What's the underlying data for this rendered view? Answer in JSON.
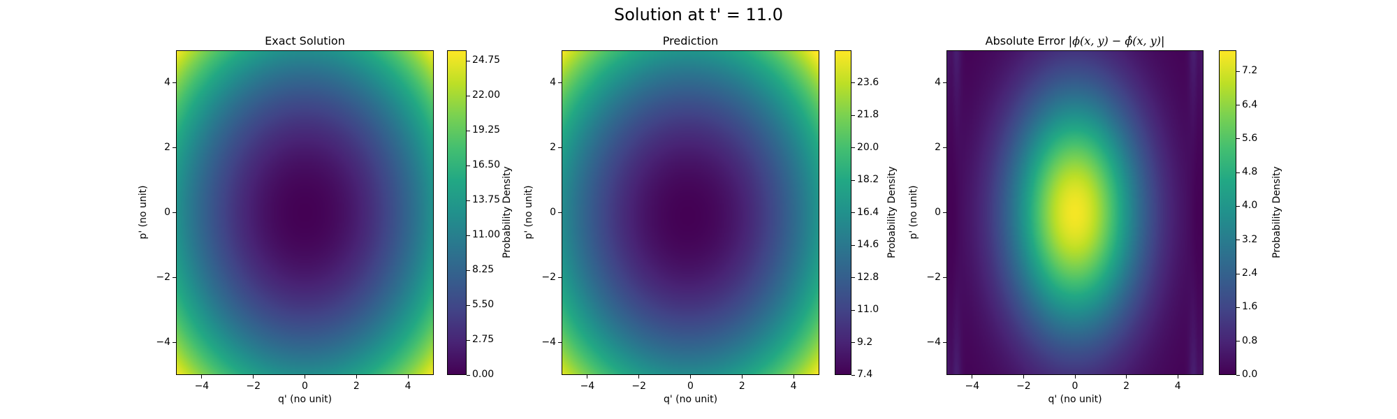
{
  "suptitle": "Solution at t' = 11.0",
  "colormap": "viridis",
  "chart_data": [
    {
      "type": "heatmap",
      "title": "Exact Solution",
      "xlabel": "q' (no unit)",
      "ylabel": "p' (no unit)",
      "xlim": [
        -5,
        5
      ],
      "ylim": [
        -5,
        5
      ],
      "xticks": [
        -4,
        -2,
        0,
        2,
        4
      ],
      "yticks": [
        -4,
        -2,
        0,
        2,
        4
      ],
      "xtick_labels": [
        "−4",
        "−2",
        "0",
        "2",
        "4"
      ],
      "ytick_labels": [
        "−4",
        "−2",
        "0",
        "2",
        "4"
      ],
      "colorbar": {
        "label": "Probability Density",
        "min": 0.0,
        "max": 25.6,
        "ticks": [
          0.0,
          2.75,
          5.5,
          8.25,
          11.0,
          13.75,
          16.5,
          19.25,
          22.0,
          24.75
        ],
        "tick_labels": [
          "0.00",
          "2.75",
          "5.50",
          "8.25",
          "11.00",
          "13.75",
          "16.50",
          "19.25",
          "22.00",
          "24.75"
        ]
      },
      "field": {
        "center": [
          0,
          0
        ],
        "base": 0.0,
        "ax": 0.52,
        "ay": 0.5,
        "power": 1
      }
    },
    {
      "type": "heatmap",
      "title": "Prediction",
      "xlabel": "q' (no unit)",
      "ylabel": "p' (no unit)",
      "xlim": [
        -5,
        5
      ],
      "ylim": [
        -5,
        5
      ],
      "xticks": [
        -4,
        -2,
        0,
        2,
        4
      ],
      "yticks": [
        -4,
        -2,
        0,
        2,
        4
      ],
      "xtick_labels": [
        "−4",
        "−2",
        "0",
        "2",
        "4"
      ],
      "ytick_labels": [
        "−4",
        "−2",
        "0",
        "2",
        "4"
      ],
      "colorbar": {
        "label": "Probability Density",
        "min": 7.4,
        "max": 25.4,
        "ticks": [
          7.4,
          9.2,
          11.0,
          12.8,
          14.6,
          16.4,
          18.2,
          20.0,
          21.8,
          23.6
        ],
        "tick_labels": [
          "7.4",
          "9.2",
          "11.0",
          "12.8",
          "14.6",
          "16.4",
          "18.2",
          "20.0",
          "21.8",
          "23.6"
        ]
      },
      "field": {
        "center": [
          -0.1,
          -0.1
        ],
        "base": 7.4,
        "ax": 0.36,
        "ay": 0.36,
        "power": 1
      }
    },
    {
      "type": "heatmap",
      "title_prefix": "Absolute Error |",
      "title_math": "ϕ(x, y) − ϕ̂(x, y)",
      "title_suffix": "|",
      "xlabel": "q' (no unit)",
      "ylabel": "p' (no unit)",
      "xlim": [
        -5,
        5
      ],
      "ylim": [
        -5,
        5
      ],
      "xticks": [
        -4,
        -2,
        0,
        2,
        4
      ],
      "yticks": [
        -4,
        -2,
        0,
        2,
        4
      ],
      "xtick_labels": [
        "−4",
        "−2",
        "0",
        "2",
        "4"
      ],
      "ytick_labels": [
        "−4",
        "−2",
        "0",
        "2",
        "4"
      ],
      "colorbar": {
        "label": "Probability Density",
        "min": 0.0,
        "max": 7.7,
        "ticks": [
          0.0,
          0.8,
          1.6,
          2.4,
          3.2,
          4.0,
          4.8,
          5.6,
          6.4,
          7.2
        ],
        "tick_labels": [
          "0.0",
          "0.8",
          "1.6",
          "2.4",
          "3.2",
          "4.0",
          "4.8",
          "5.6",
          "6.4",
          "7.2"
        ]
      },
      "field": {
        "center": [
          0,
          0
        ],
        "peak": 7.6,
        "ax": 0.16,
        "ay": 0.075,
        "edge_dip": 4.7
      }
    }
  ]
}
